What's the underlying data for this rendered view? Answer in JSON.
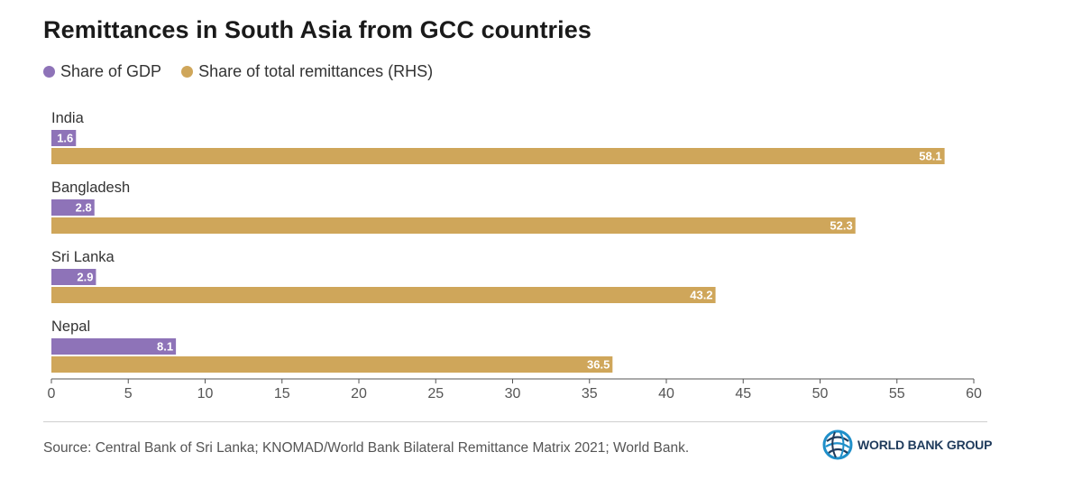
{
  "chart_data": {
    "type": "bar",
    "orientation": "horizontal",
    "title": "Remittances in South Asia from GCC countries",
    "categories": [
      "India",
      "Bangladesh",
      "Sri Lanka",
      "Nepal"
    ],
    "series": [
      {
        "name": "Share of GDP",
        "values": [
          1.6,
          2.8,
          2.9,
          8.1
        ],
        "color": "#8e73b8"
      },
      {
        "name": "Share of total remittances (RHS)",
        "values": [
          58.1,
          52.3,
          43.2,
          36.5
        ],
        "color": "#cfa65a"
      }
    ],
    "xlim": [
      0,
      60
    ],
    "xticks": [
      0,
      5,
      10,
      15,
      20,
      25,
      30,
      35,
      40,
      45,
      50,
      55,
      60
    ],
    "grid": false,
    "legend_position": "top-left"
  },
  "footer": {
    "source": "Source: Central Bank of Sri Lanka; KNOMAD/World Bank Bilateral Remittance Matrix 2021; World Bank.",
    "logo_text": "WORLD BANK GROUP"
  }
}
